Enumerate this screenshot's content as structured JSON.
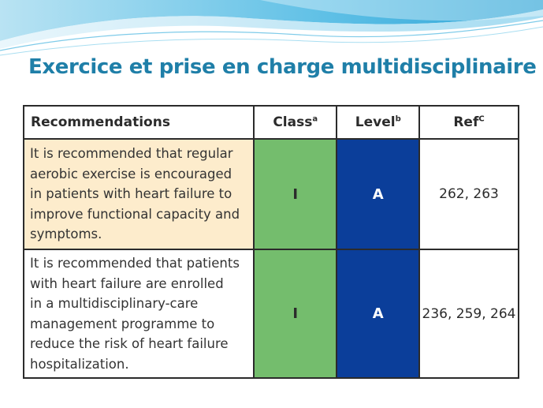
{
  "slide": {
    "title": "Exercice et prise en charge multidisciplinaire"
  },
  "table": {
    "headers": {
      "recommendations": "Recommendations",
      "class": "Class",
      "class_sup": "a",
      "level": "Level",
      "level_sup": "b",
      "ref": "Ref",
      "ref_sup": "C"
    },
    "rows": [
      {
        "lines": [
          "It is recommended that regular",
          "aerobic exercise is encouraged",
          "in patients with heart failure to",
          "improve functional capacity and",
          "symptoms."
        ],
        "class": "I",
        "level": "A",
        "ref": "262, 263"
      },
      {
        "lines": [
          "It is recommended that patients",
          "with heart failure are enrolled",
          "in a multidisciplinary-care",
          "management programme to",
          "reduce the risk of heart failure",
          "hospitalization."
        ],
        "class": "I",
        "level": "A",
        "ref": "236, 259, 264"
      }
    ]
  },
  "colors": {
    "title": "#1f7fa8",
    "class_cell": "#74bd6d",
    "level_cell": "#0b3e9a",
    "highlight_row": "#fdeccc"
  }
}
